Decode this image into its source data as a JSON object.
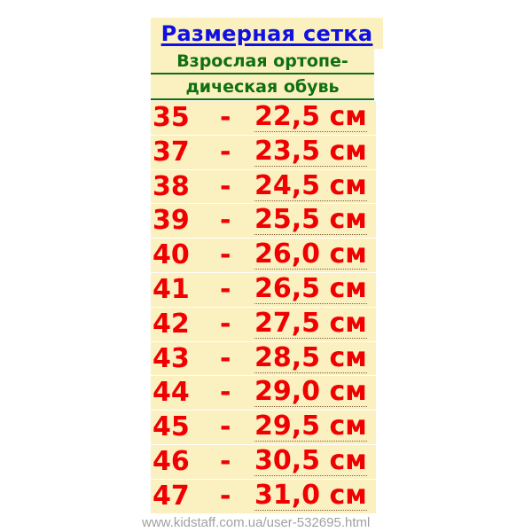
{
  "title": "Размерная сетка",
  "subtitle_line1": "Взрослая ортопе-",
  "subtitle_line2": "дическая обувь",
  "separator": "-",
  "rows": [
    {
      "size": "35",
      "length": "22,5 см"
    },
    {
      "size": "37",
      "length": "23,5 см"
    },
    {
      "size": "38",
      "length": "24,5 см"
    },
    {
      "size": "39",
      "length": "25,5 см"
    },
    {
      "size": "40",
      "length": "26,0 см"
    },
    {
      "size": "41",
      "length": "26,5 см"
    },
    {
      "size": "42",
      "length": "27,5 см"
    },
    {
      "size": "43",
      "length": "28,5 см"
    },
    {
      "size": "44",
      "length": "29,0 см"
    },
    {
      "size": "45",
      "length": "29,5 см"
    },
    {
      "size": "46",
      "length": "30,5 см"
    },
    {
      "size": "47",
      "length": "31,0 см"
    }
  ],
  "watermark": "www.kidstaff.com.ua/user-532695.html",
  "colors": {
    "background": "#fbf0c0",
    "title": "#1010e0",
    "subtitle": "#107010",
    "rows": "#f00000"
  }
}
